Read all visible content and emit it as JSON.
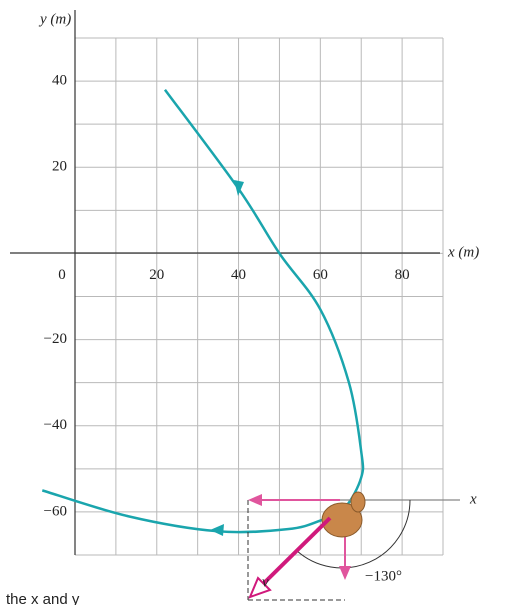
{
  "chart_data": {
    "type": "line",
    "xlabel": "x (m)",
    "ylabel": "y (m)",
    "xlim": [
      0,
      90
    ],
    "ylim": [
      -70,
      50
    ],
    "xticks": [
      0,
      20,
      40,
      60,
      80
    ],
    "yticks": [
      40,
      20,
      {
        "value": -20,
        "label": "−20"
      },
      {
        "value": -40,
        "label": "−40"
      },
      {
        "value": -60,
        "label": "−60"
      }
    ],
    "xgrid": [
      0,
      10,
      20,
      30,
      40,
      50,
      60,
      70,
      80,
      90
    ],
    "ygrid": [
      50,
      40,
      30,
      20,
      10,
      0,
      -10,
      -20,
      -30,
      -40,
      -50,
      -60,
      -70
    ],
    "grid": true,
    "series": [
      {
        "color": "#1aa5ad",
        "x": [
          22,
          40,
          50,
          60,
          67,
          70,
          70,
          66,
          60,
          52,
          35,
          13,
          -8
        ],
        "values": [
          38,
          15,
          0,
          -13,
          -30,
          -46,
          -52,
          -59,
          -62,
          -64,
          -64.5,
          -61,
          -55
        ]
      }
    ],
    "annotations": {
      "angle": "−130°",
      "axis": "x",
      "vector": "v"
    },
    "caption": "the x and y"
  }
}
